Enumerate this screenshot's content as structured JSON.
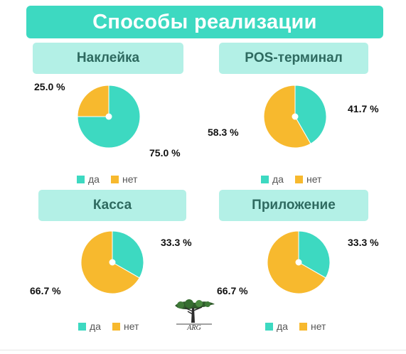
{
  "title": "Способы реализации",
  "colors": {
    "yes": "#3dd9c1",
    "no": "#f7b92e",
    "center": "#ffffff"
  },
  "legend": {
    "yes": "да",
    "no": "нет"
  },
  "chart_data": [
    {
      "type": "pie",
      "title": "Наклейка",
      "categories": [
        "да",
        "нет"
      ],
      "values": [
        75.0,
        25.0
      ],
      "labels": [
        "75.0 %",
        "25.0 %"
      ]
    },
    {
      "type": "pie",
      "title": "POS-терминал",
      "categories": [
        "да",
        "нет"
      ],
      "values": [
        41.7,
        58.3
      ],
      "labels": [
        "41.7 %",
        "58.3 %"
      ]
    },
    {
      "type": "pie",
      "title": "Касса",
      "categories": [
        "да",
        "нет"
      ],
      "values": [
        33.3,
        66.7
      ],
      "labels": [
        "33.3 %",
        "66.7 %"
      ]
    },
    {
      "type": "pie",
      "title": "Приложение",
      "categories": [
        "да",
        "нет"
      ],
      "values": [
        33.3,
        66.7
      ],
      "labels": [
        "33.3 %",
        "66.7 %"
      ]
    }
  ],
  "logo_text": "ARG"
}
